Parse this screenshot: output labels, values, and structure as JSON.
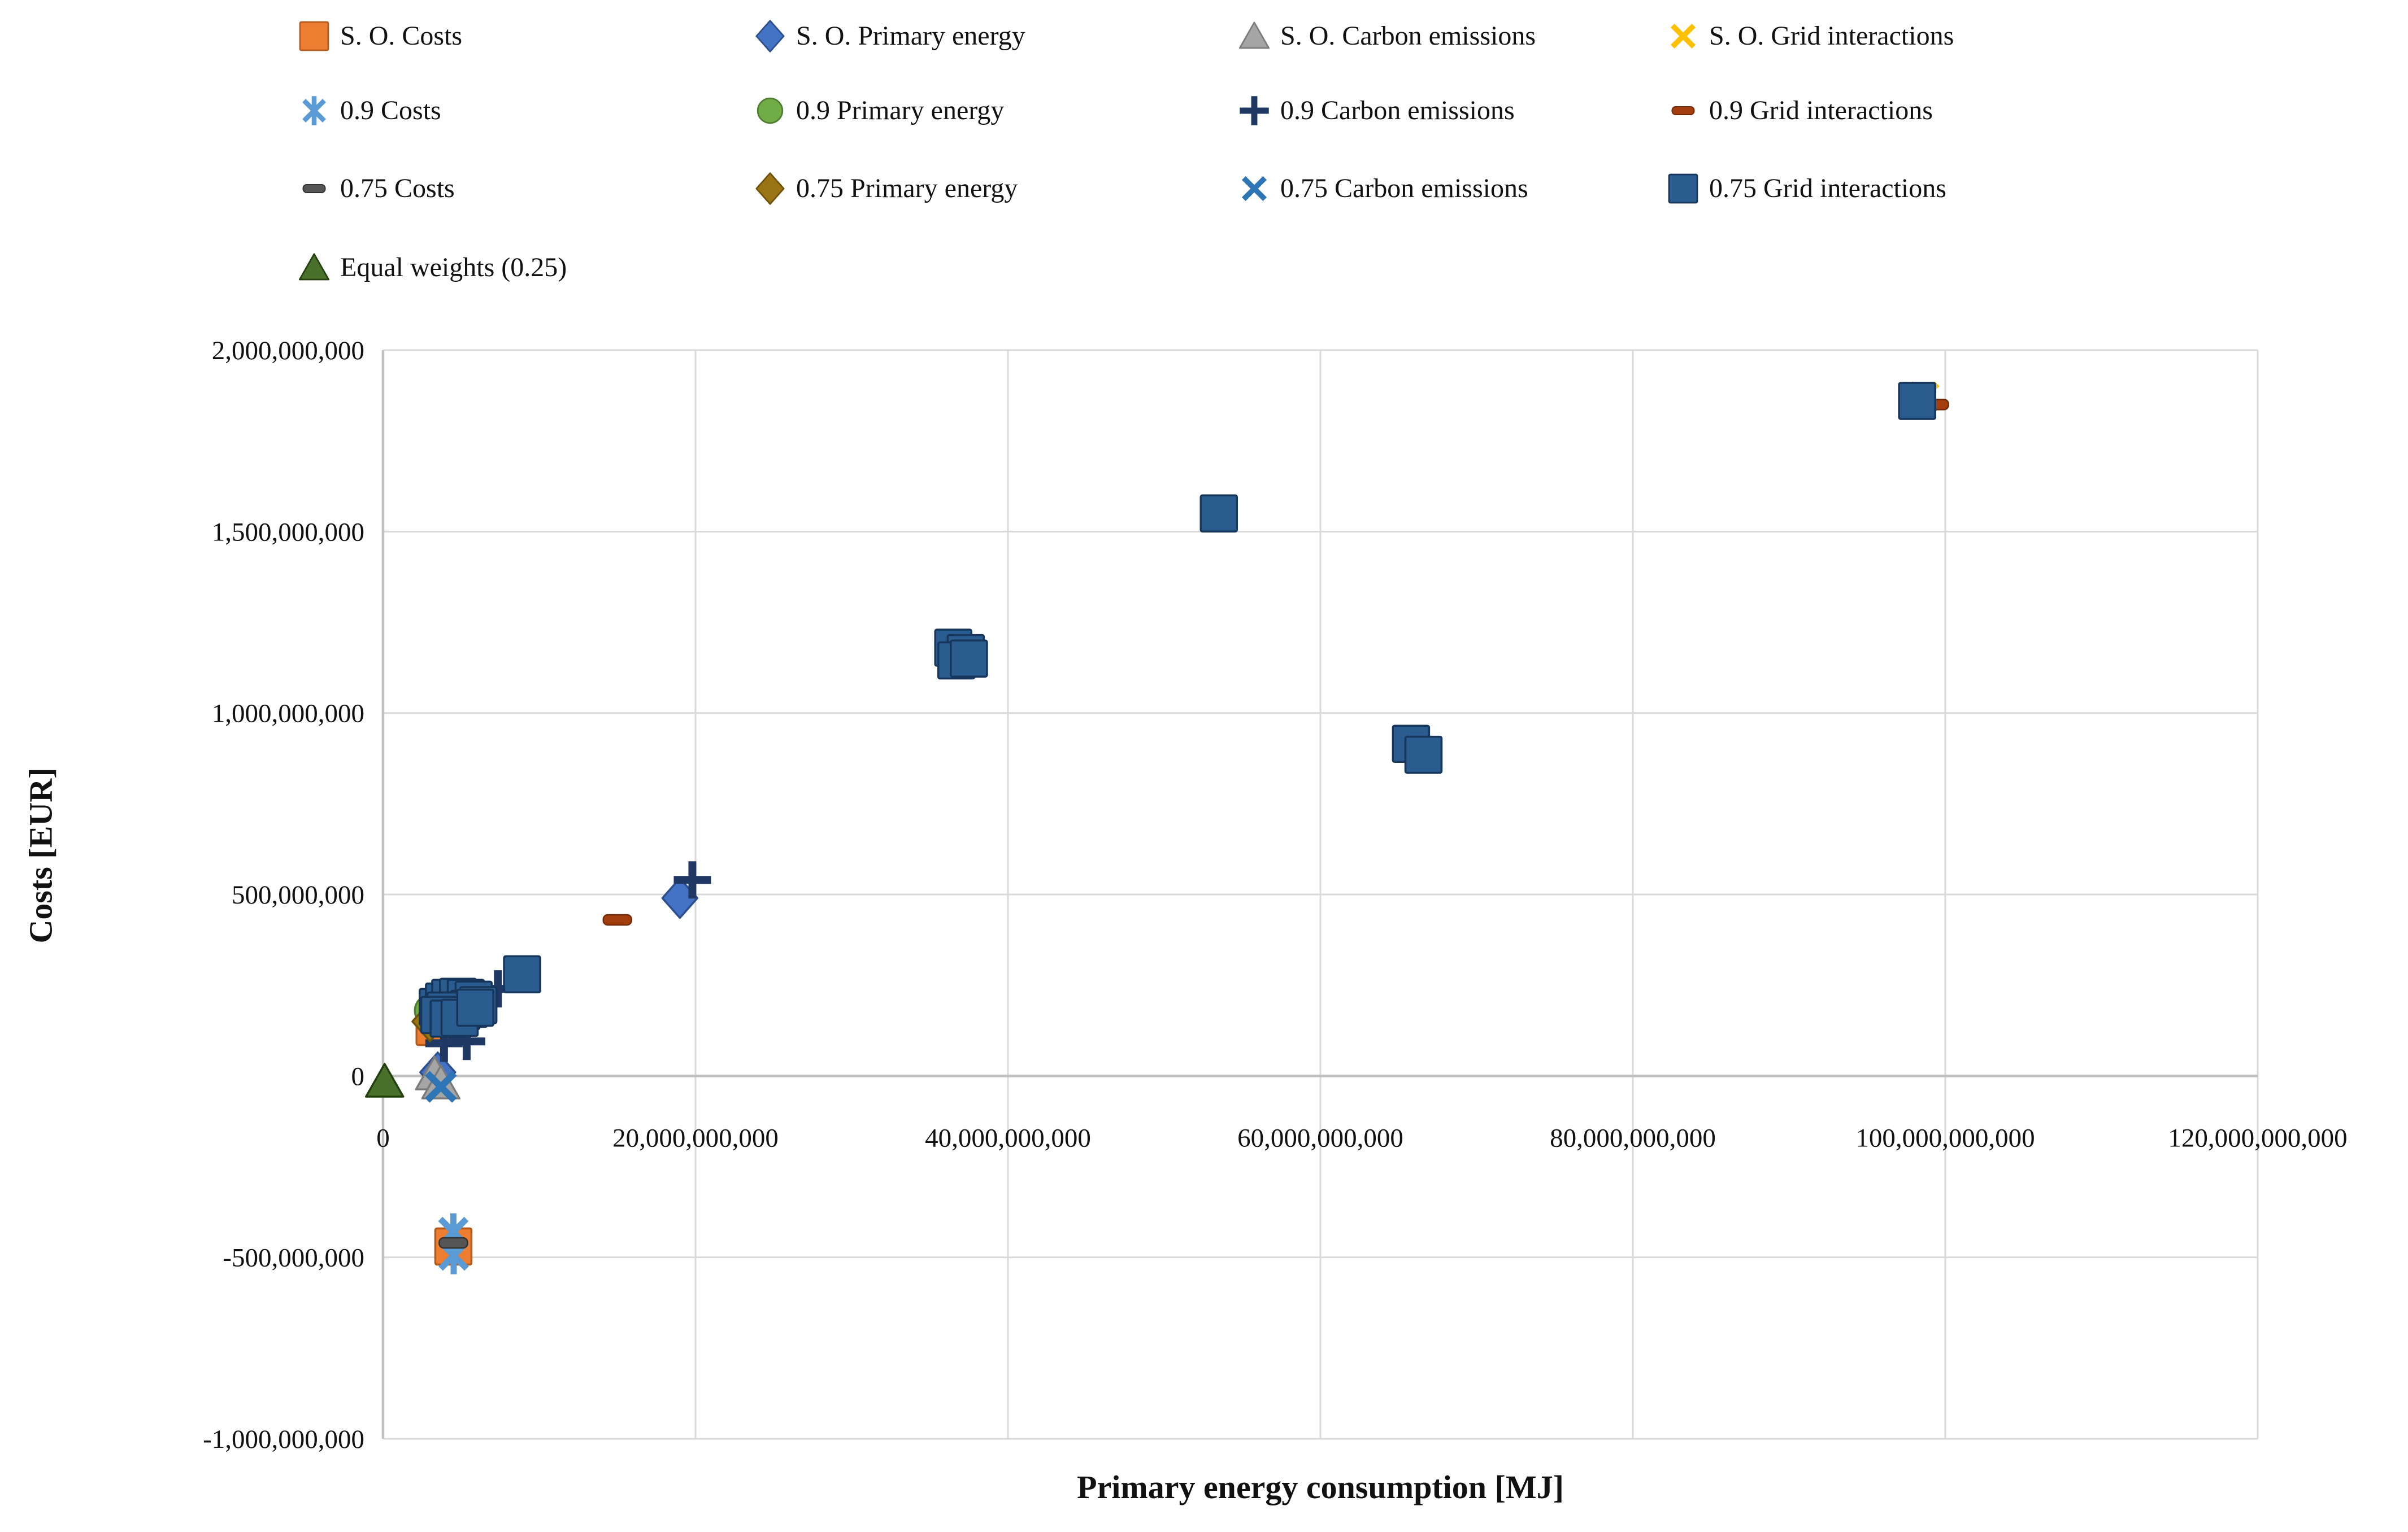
{
  "chart_data": {
    "type": "scatter",
    "title": "",
    "xlabel": "Primary energy consumption [MJ]",
    "ylabel": "Costs [EUR]",
    "xlim": [
      0,
      120000000000
    ],
    "ylim": [
      -1000000000,
      2000000000
    ],
    "grid": true,
    "legend_position": "top",
    "legend_columns": 4,
    "axis_color": "#BFBFBF",
    "grid_color": "#D9D9D9",
    "x_ticks": [
      0,
      20000000000,
      40000000000,
      60000000000,
      80000000000,
      100000000000,
      120000000000
    ],
    "x_tick_labels": [
      "0",
      "20,000,000,000",
      "40,000,000,000",
      "60,000,000,000",
      "80,000,000,000",
      "100,000,000,000",
      "120,000,000,000"
    ],
    "y_ticks": [
      2000000000,
      1500000000,
      1000000000,
      500000000,
      0,
      -500000000,
      -1000000000
    ],
    "y_tick_labels": [
      "2,000,000,000",
      "1,500,000,000",
      "1,000,000,000",
      "500,000,000",
      "0",
      "-500,000,000",
      "-1,000,000,000"
    ],
    "series": [
      {
        "name": "S. O. Costs",
        "marker": "square",
        "color": "#ED7D31",
        "border": "#B55B1D",
        "points": [
          [
            3300000000,
            135000000
          ],
          [
            4500000000,
            -470000000
          ]
        ]
      },
      {
        "name": "S. O. Primary energy",
        "marker": "diamond",
        "color": "#4472C4",
        "border": "#2D4F90",
        "points": [
          [
            3500000000,
            10000000
          ],
          [
            19000000000,
            490000000
          ]
        ]
      },
      {
        "name": "S. O. Carbon emissions",
        "marker": "triangle",
        "color": "#A5A5A5",
        "border": "#7B7B7B",
        "points": [
          [
            3300000000,
            5000000
          ],
          [
            3700000000,
            -20000000
          ]
        ]
      },
      {
        "name": "S. O. Grid interactions",
        "marker": "xmark",
        "color": "#FFC000",
        "points": [
          [
            98600000000,
            1870000000
          ]
        ]
      },
      {
        "name": "0.9 Costs",
        "marker": "asterisk",
        "color": "#5B9BD5",
        "points": [
          [
            4500000000,
            -430000000
          ],
          [
            4520000000,
            -495000000
          ]
        ]
      },
      {
        "name": "0.9 Primary energy",
        "marker": "circle",
        "color": "#70AD47",
        "border": "#507E32",
        "points": [
          [
            3050000000,
            180000000
          ]
        ]
      },
      {
        "name": "0.9 Carbon emissions",
        "marker": "plus",
        "color": "#203864",
        "points": [
          [
            3900000000,
            90000000
          ],
          [
            5350000000,
            95000000
          ],
          [
            7350000000,
            240000000
          ],
          [
            19800000000,
            540000000
          ]
        ]
      },
      {
        "name": "0.9 Grid interactions",
        "marker": "dash",
        "color": "#A33E0F",
        "border": "#732B09",
        "points": [
          [
            15000000000,
            430000000
          ],
          [
            99300000000,
            1850000000
          ]
        ]
      },
      {
        "name": "0.75 Costs",
        "marker": "dash",
        "color": "#555555",
        "border": "#333333",
        "points": [
          [
            4500000000,
            -460000000
          ]
        ]
      },
      {
        "name": "0.75 Primary energy",
        "marker": "diamond",
        "color": "#9A7414",
        "border": "#6F5209",
        "points": [
          [
            3000000000,
            150000000
          ]
        ]
      },
      {
        "name": "0.75 Carbon emissions",
        "marker": "xmark",
        "color": "#2E75B6",
        "points": [
          [
            3700000000,
            -30000000
          ]
        ]
      },
      {
        "name": "0.75 Grid interactions",
        "marker": "square",
        "color": "#2B5C8F",
        "border": "#16365C",
        "points": [
          [
            3500000000,
            190000000
          ],
          [
            3900000000,
            205000000
          ],
          [
            4300000000,
            215000000
          ],
          [
            4800000000,
            218000000
          ],
          [
            5300000000,
            215000000
          ],
          [
            5800000000,
            210000000
          ],
          [
            6100000000,
            195000000
          ],
          [
            5500000000,
            185000000
          ],
          [
            5000000000,
            178000000
          ],
          [
            4500000000,
            180000000
          ],
          [
            4000000000,
            180000000
          ],
          [
            3600000000,
            168000000
          ],
          [
            4200000000,
            158000000
          ],
          [
            4900000000,
            160000000
          ],
          [
            5900000000,
            188000000
          ],
          [
            8900000000,
            280000000
          ],
          [
            36500000000,
            1180000000
          ],
          [
            37300000000,
            1165000000
          ],
          [
            36700000000,
            1145000000
          ],
          [
            37500000000,
            1150000000
          ],
          [
            53500000000,
            1550000000
          ],
          [
            65800000000,
            915000000
          ],
          [
            66600000000,
            885000000
          ],
          [
            98200000000,
            1860000000
          ]
        ]
      },
      {
        "name": "Equal weights (0.25)",
        "marker": "triangle",
        "color": "#48702B",
        "border": "#24400F",
        "points": [
          [
            100000000,
            -15000000
          ]
        ]
      }
    ]
  }
}
